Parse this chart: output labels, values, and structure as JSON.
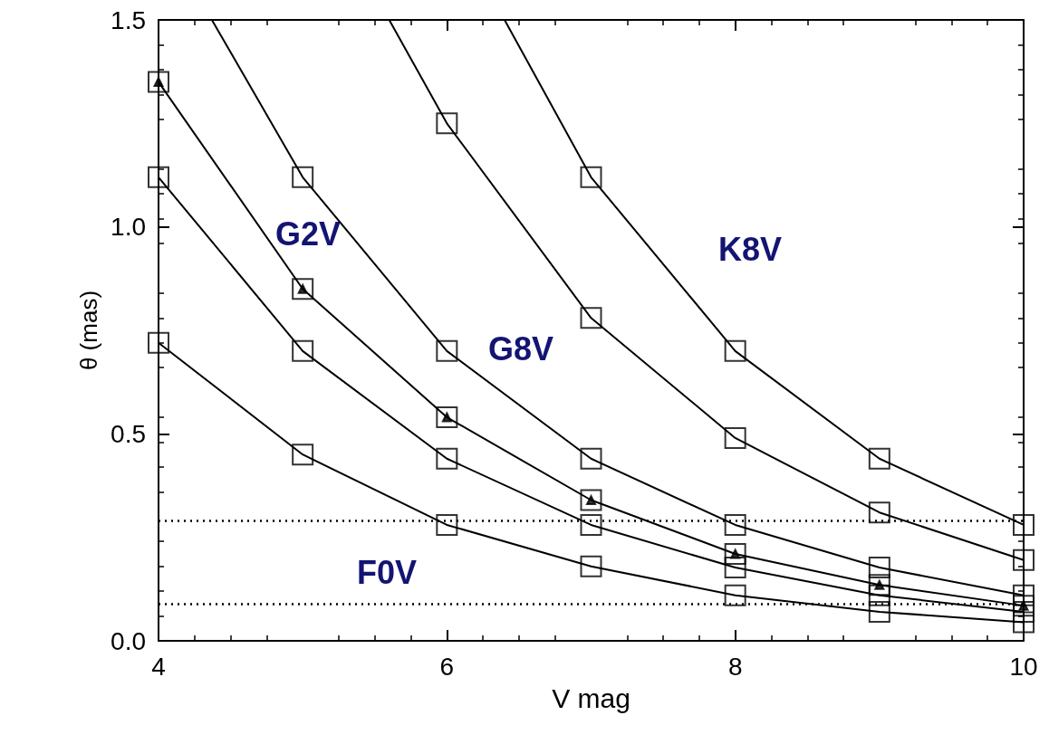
{
  "chart_data": {
    "type": "line",
    "xlabel": "V mag",
    "ylabel": "θ (mas)",
    "xlim": [
      4,
      10
    ],
    "xticks": [
      4,
      6,
      8,
      10
    ],
    "ylim": [
      0,
      1.5
    ],
    "yticks": [
      {
        "value": 0,
        "label": "0.0"
      },
      {
        "value": 0.5,
        "label": "0.5"
      },
      {
        "value": 1,
        "label": "1.0"
      },
      {
        "value": 1.5,
        "label": "1.5"
      }
    ],
    "grid": false,
    "marker": "none",
    "line_style": "solid",
    "series": [
      {
        "color": "#000000",
        "x": [
          4,
          5,
          6,
          7,
          8,
          9,
          10
        ],
        "values": [
          0.72,
          0.45,
          0.28,
          0.18,
          0.11,
          0.07,
          0.045
        ]
      },
      {
        "color": "#000000",
        "x": [
          4,
          5,
          6,
          7,
          8,
          9,
          10
        ],
        "values": [
          1.12,
          0.7,
          0.44,
          0.28,
          0.177,
          0.11,
          0.07
        ]
      },
      {
        "color": "#000000",
        "x": [
          4,
          5,
          6,
          7,
          8,
          9,
          10
        ],
        "values": [
          1.35,
          0.85,
          0.54,
          0.34,
          0.21,
          0.135,
          0.085
        ]
      },
      {
        "color": "#000000",
        "x": [
          4.37,
          5,
          6,
          7,
          8,
          9,
          10
        ],
        "values": [
          1.5,
          1.12,
          0.7,
          0.44,
          0.28,
          0.177,
          0.11
        ]
      },
      {
        "color": "#000000",
        "x": [
          5.6,
          6,
          7,
          8,
          9,
          10
        ],
        "values": [
          1.5,
          1.25,
          0.78,
          0.49,
          0.31,
          0.195
        ]
      },
      {
        "color": "#000000",
        "x": [
          6.4,
          7,
          8,
          9,
          10
        ],
        "values": [
          1.5,
          1.12,
          0.7,
          0.44,
          0.28
        ]
      },
      {
        "type": "scatter",
        "marker": "square",
        "color": "#000000",
        "x": [
          4,
          5,
          6,
          7,
          8,
          9,
          10,
          4,
          5,
          6,
          7,
          8,
          9,
          10,
          4,
          5,
          6,
          7,
          8,
          9,
          10,
          5,
          6,
          7,
          8,
          9,
          10,
          6,
          7,
          8,
          9,
          10,
          7,
          8,
          9,
          10
        ],
        "values": [
          0.72,
          0.45,
          0.28,
          0.18,
          0.11,
          0.07,
          0.045,
          1.12,
          0.7,
          0.44,
          0.28,
          0.177,
          0.11,
          0.07,
          1.35,
          0.85,
          0.54,
          0.34,
          0.21,
          0.135,
          0.085,
          1.12,
          0.7,
          0.44,
          0.28,
          0.177,
          0.11,
          1.25,
          0.78,
          0.49,
          0.31,
          0.195,
          1.12,
          0.7,
          0.44,
          0.28
        ]
      },
      {
        "type": "scatter",
        "marker": "triangle",
        "color": "#000000",
        "x": [
          4,
          5,
          6,
          7,
          8,
          9,
          10
        ],
        "values": [
          1.35,
          0.85,
          0.54,
          0.34,
          0.21,
          0.135,
          0.085
        ]
      }
    ],
    "ref_lines": [
      {
        "axis": "y",
        "value": 0.29,
        "line_style": "dotted",
        "color": "#000000"
      },
      {
        "axis": "y",
        "value": 0.09,
        "line_style": "dotted",
        "color": "#000000"
      }
    ],
    "annotations": [
      "G2V",
      "G8V",
      "K8V",
      "F0V"
    ]
  }
}
